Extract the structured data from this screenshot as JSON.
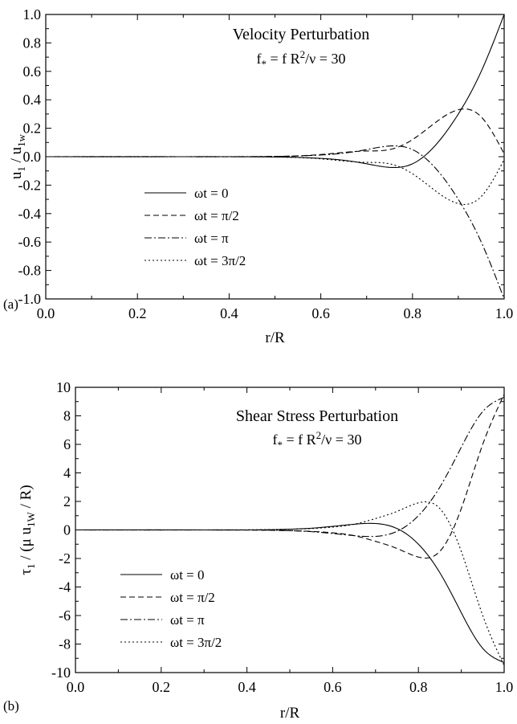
{
  "chart_data": [
    {
      "panel": "(a)",
      "type": "line",
      "title": "Velocity Perturbation",
      "subtitle": {
        "pre": "f",
        "sub1": "*",
        "mid": " = f R",
        "sup": "2",
        "post": "/ν = 30"
      },
      "xlabel": "r/R",
      "ylabel": {
        "pre": "u",
        "sub1": "1",
        "mid": " / u",
        "sub2": "1w",
        "post": ""
      },
      "xlim": [
        0.0,
        1.0
      ],
      "ylim": [
        -1.0,
        1.0
      ],
      "xticks": [
        "0.0",
        "0.2",
        "0.4",
        "0.6",
        "0.8",
        "1.0"
      ],
      "yticks": [
        "-1.0",
        "-0.8",
        "-0.6",
        "-0.4",
        "-0.2",
        "0.0",
        "0.2",
        "0.4",
        "0.6",
        "0.8",
        "1.0"
      ],
      "xtick_values": [
        0.0,
        0.2,
        0.4,
        0.6,
        0.8,
        1.0
      ],
      "ytick_values": [
        -1.0,
        -0.8,
        -0.6,
        -0.4,
        -0.2,
        0.0,
        0.2,
        0.4,
        0.6,
        0.8,
        1.0
      ],
      "x": [
        0.0,
        0.3,
        0.5,
        0.55,
        0.6,
        0.65,
        0.7,
        0.75,
        0.8,
        0.85,
        0.9,
        0.95,
        1.0
      ],
      "series": [
        {
          "name": "ωt = 0",
          "dash": "solid",
          "values": [
            0.0,
            0.0,
            -0.002,
            -0.005,
            -0.012,
            -0.025,
            -0.05,
            -0.075,
            -0.05,
            0.08,
            0.3,
            0.6,
            1.0
          ]
        },
        {
          "name": "ωt = π/2",
          "dash": "dashed",
          "values": [
            0.0,
            0.0,
            0.002,
            0.006,
            0.015,
            0.03,
            0.04,
            0.05,
            0.12,
            0.24,
            0.33,
            0.28,
            0.02
          ]
        },
        {
          "name": "ωt = π",
          "dash": "dashdot",
          "values": [
            0.0,
            0.0,
            0.002,
            0.005,
            0.012,
            0.025,
            0.05,
            0.075,
            0.05,
            -0.08,
            -0.3,
            -0.6,
            -1.0
          ]
        },
        {
          "name": "ωt = 3π/2",
          "dash": "dotted",
          "values": [
            0.0,
            0.0,
            -0.002,
            -0.006,
            -0.015,
            -0.03,
            -0.04,
            -0.05,
            -0.12,
            -0.24,
            -0.33,
            -0.28,
            -0.02
          ]
        }
      ],
      "legend": "lower-left",
      "grid": false
    },
    {
      "panel": "(b)",
      "type": "line",
      "title": "Shear Stress Perturbation",
      "subtitle": {
        "pre": "f",
        "sub1": "*",
        "mid": " = f R",
        "sup": "2",
        "post": "/ν = 30"
      },
      "xlabel": "r/R",
      "ylabel": {
        "pre": "τ",
        "sub1": "1",
        "mid": " / (μ u",
        "sub2": "1W",
        "post": " / R)"
      },
      "xlim": [
        0.0,
        1.0
      ],
      "ylim": [
        -10,
        10
      ],
      "xticks": [
        "0.0",
        "0.2",
        "0.4",
        "0.6",
        "0.8",
        "1.0"
      ],
      "yticks": [
        "-10",
        "-8",
        "-6",
        "-4",
        "-2",
        "0",
        "2",
        "4",
        "6",
        "8",
        "10"
      ],
      "xtick_values": [
        0.0,
        0.2,
        0.4,
        0.6,
        0.8,
        1.0
      ],
      "ytick_values": [
        -10,
        -8,
        -6,
        -4,
        -2,
        0,
        2,
        4,
        6,
        8,
        10
      ],
      "x": [
        0.0,
        0.3,
        0.5,
        0.55,
        0.6,
        0.65,
        0.7,
        0.75,
        0.8,
        0.85,
        0.9,
        0.95,
        1.0
      ],
      "series": [
        {
          "name": "ωt = 0",
          "dash": "solid",
          "values": [
            0.0,
            0.0,
            0.05,
            0.12,
            0.25,
            0.4,
            0.45,
            0.1,
            -1.0,
            -3.0,
            -5.8,
            -8.3,
            -9.3
          ]
        },
        {
          "name": "ωt = π/2",
          "dash": "dashed",
          "values": [
            0.0,
            0.0,
            -0.05,
            -0.1,
            -0.2,
            -0.4,
            -0.8,
            -1.3,
            -1.9,
            -1.5,
            1.5,
            6.0,
            9.5
          ]
        },
        {
          "name": "ωt = π",
          "dash": "dashdot",
          "values": [
            0.0,
            0.0,
            -0.05,
            -0.12,
            -0.25,
            -0.4,
            -0.45,
            -0.1,
            1.0,
            3.0,
            5.8,
            8.3,
            9.3
          ]
        },
        {
          "name": "ωt = 3π/2",
          "dash": "dotted",
          "values": [
            0.0,
            0.0,
            0.05,
            0.1,
            0.2,
            0.4,
            0.8,
            1.3,
            1.9,
            1.5,
            -1.5,
            -6.0,
            -9.5
          ]
        }
      ],
      "legend": "lower-left",
      "grid": false
    }
  ]
}
